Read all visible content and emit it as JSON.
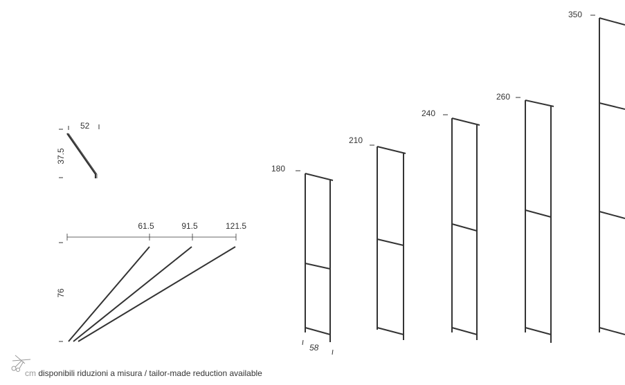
{
  "shelf": {
    "height_label": "37.5",
    "width_label": "52"
  },
  "diagonal_braces": {
    "height_label": "76",
    "lengths": [
      "61.5",
      "91.5",
      "121.5"
    ]
  },
  "frames": {
    "depth_label": "58",
    "heights": [
      "180",
      "210",
      "240",
      "260",
      "350"
    ]
  },
  "footer": {
    "unit": "cm",
    "note": "disponibili riduzioni a misura / tailor-made reduction available",
    "icon": "scissors-icon"
  },
  "colors": {
    "line": "#333333",
    "text": "#333333",
    "muted": "#999999"
  }
}
